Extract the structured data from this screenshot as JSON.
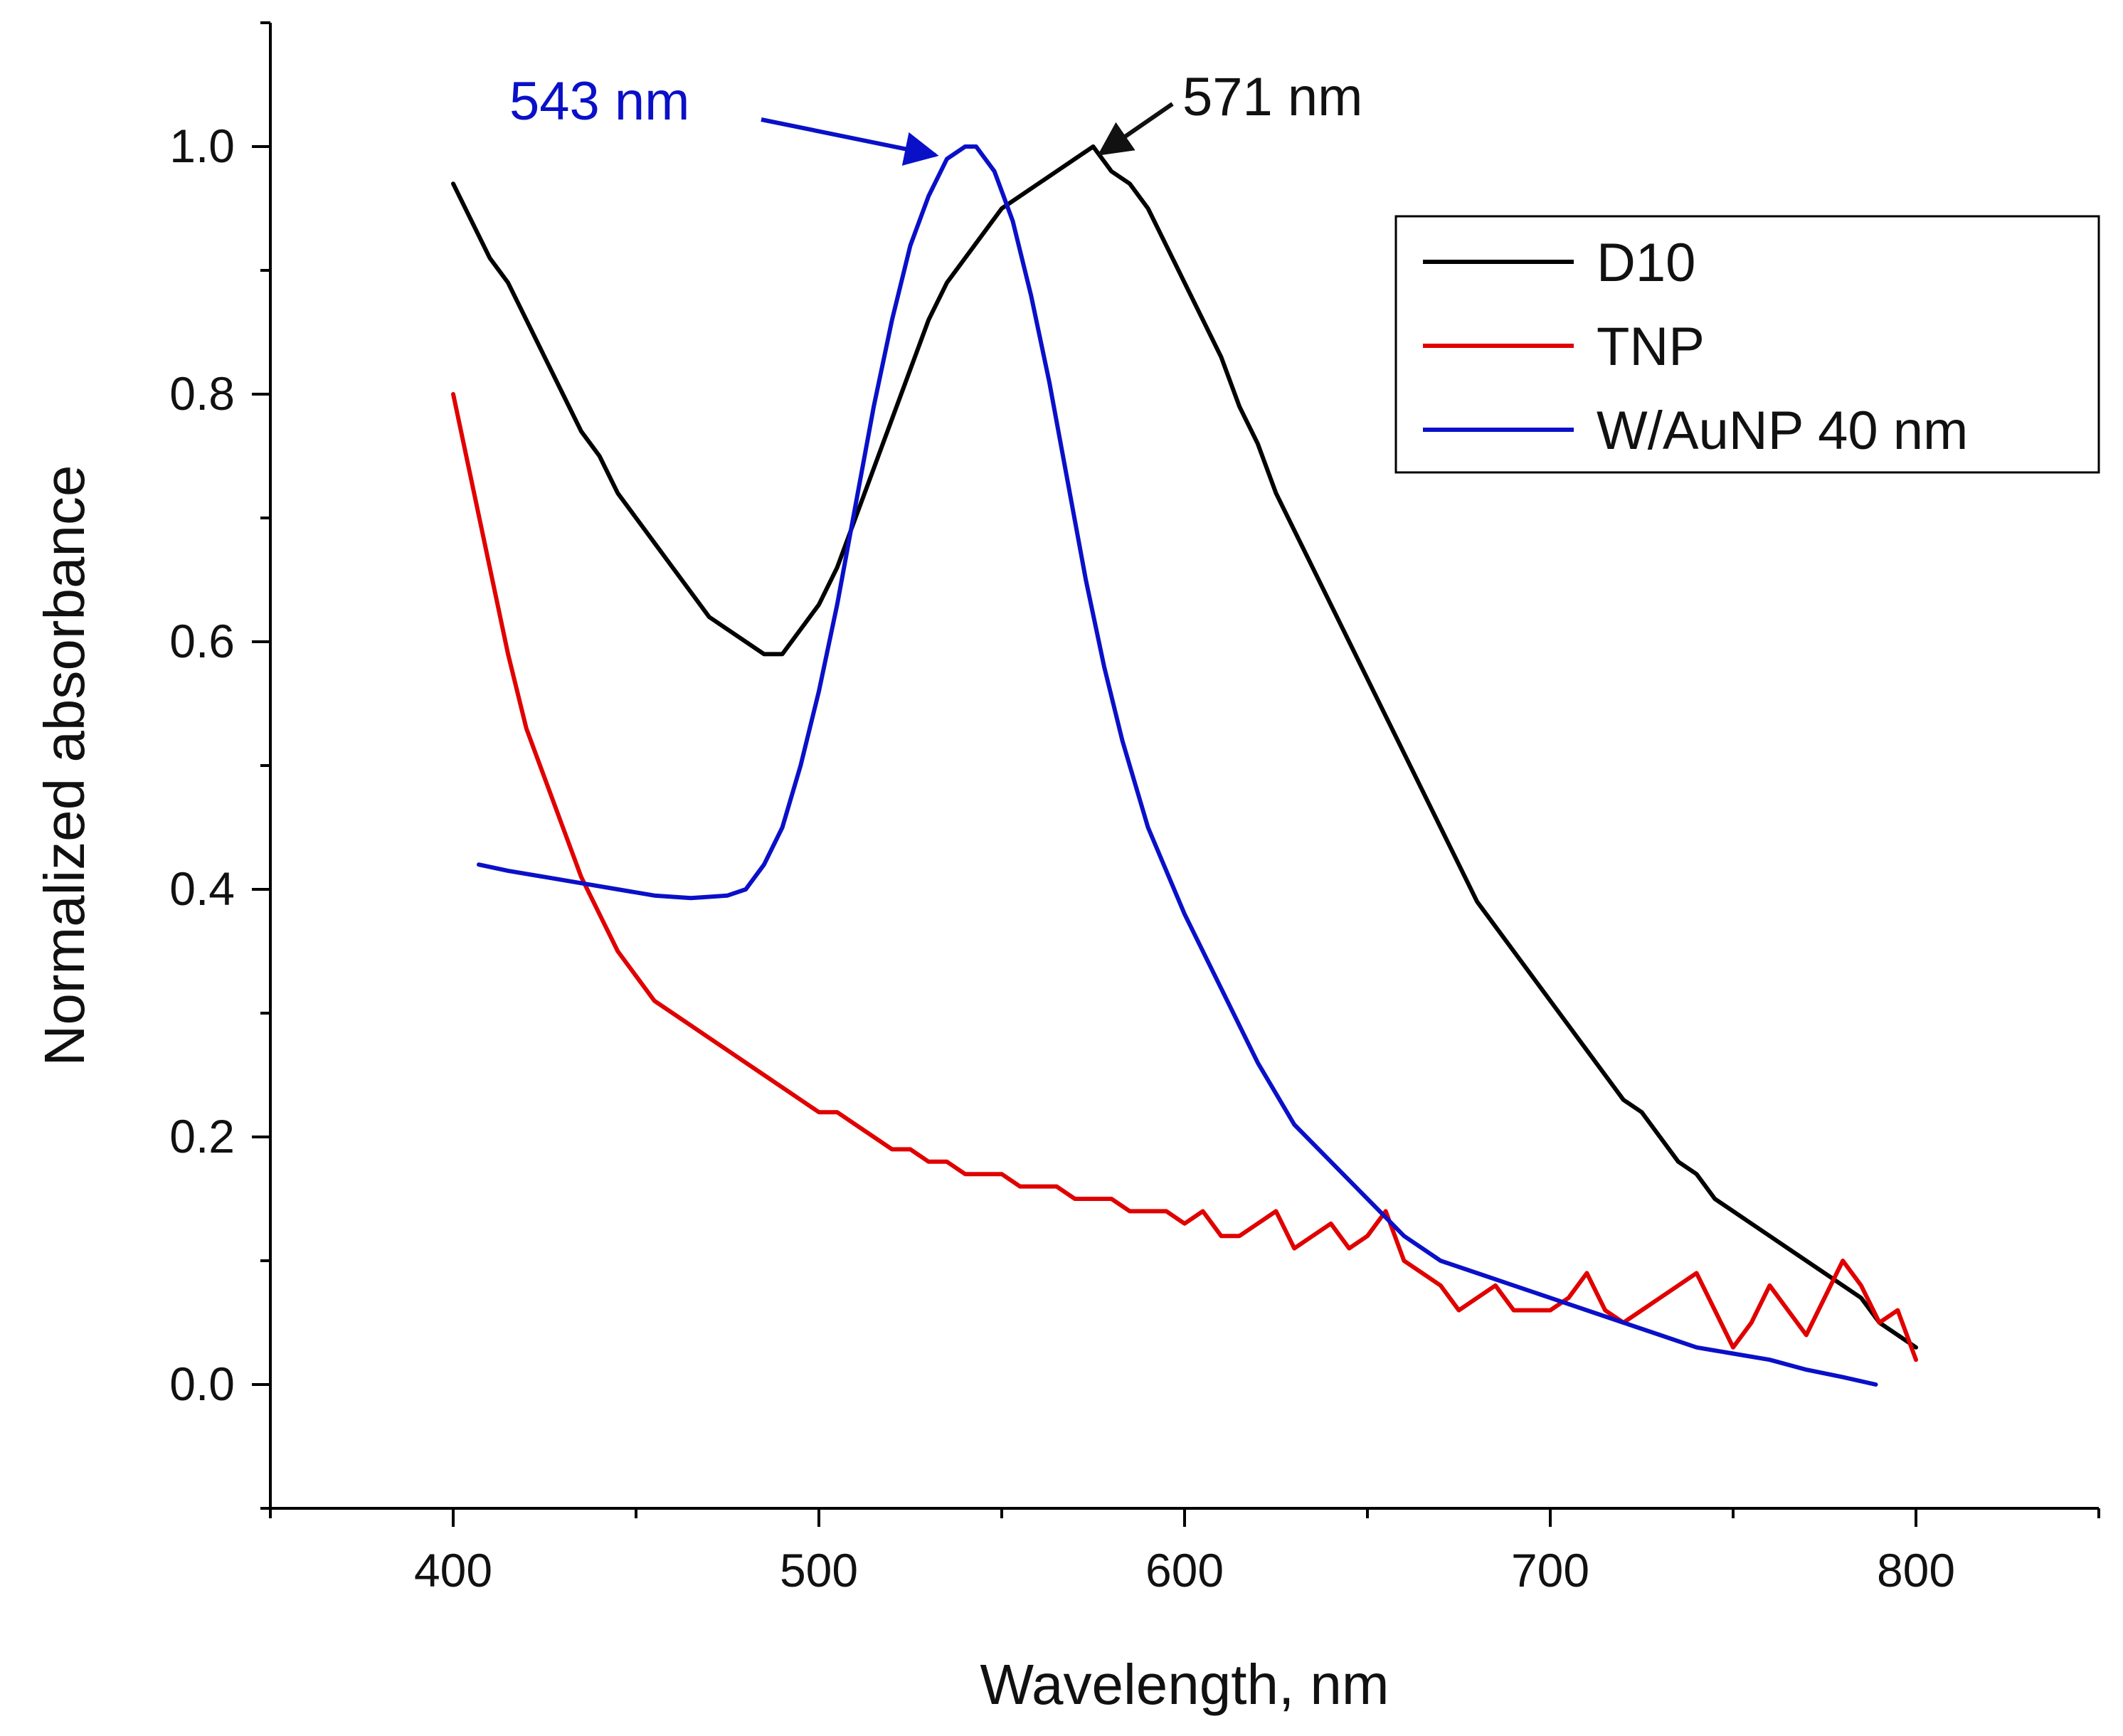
{
  "chart_data": {
    "type": "line",
    "title": "",
    "xlabel": "Wavelength, nm",
    "ylabel": "Normalized absorbance",
    "xlim": [
      350,
      850
    ],
    "ylim": [
      -0.1,
      1.1
    ],
    "grid": false,
    "x_ticks": [
      400,
      500,
      600,
      700,
      800
    ],
    "x_tick_labels": [
      "400",
      "500",
      "600",
      "700",
      "800"
    ],
    "y_ticks": [
      0.0,
      0.2,
      0.4,
      0.6,
      0.8,
      1.0
    ],
    "y_tick_labels": [
      "0.0",
      "0.2",
      "0.4",
      "0.6",
      "0.8",
      "1.0"
    ],
    "legend": {
      "placement": "top-right",
      "entries": [
        "D10",
        "TNP",
        "W/AuNP 40 nm"
      ]
    },
    "series": [
      {
        "name": "D10",
        "color": "#000000",
        "x": [
          400,
          405,
          410,
          415,
          420,
          425,
          430,
          435,
          440,
          445,
          450,
          455,
          460,
          465,
          470,
          475,
          480,
          485,
          490,
          495,
          500,
          505,
          510,
          515,
          520,
          525,
          530,
          535,
          540,
          545,
          550,
          555,
          560,
          565,
          570,
          575,
          580,
          585,
          590,
          595,
          600,
          605,
          610,
          615,
          620,
          625,
          630,
          635,
          640,
          645,
          650,
          655,
          660,
          665,
          670,
          675,
          680,
          685,
          690,
          695,
          700,
          705,
          710,
          715,
          720,
          725,
          730,
          735,
          740,
          745,
          750,
          755,
          760,
          765,
          770,
          775,
          780,
          785,
          790,
          795,
          800
        ],
        "y": [
          0.97,
          0.94,
          0.91,
          0.89,
          0.86,
          0.83,
          0.8,
          0.77,
          0.75,
          0.72,
          0.7,
          0.68,
          0.66,
          0.64,
          0.62,
          0.61,
          0.6,
          0.59,
          0.59,
          0.61,
          0.63,
          0.66,
          0.7,
          0.74,
          0.78,
          0.82,
          0.86,
          0.89,
          0.91,
          0.93,
          0.95,
          0.96,
          0.97,
          0.98,
          0.99,
          1.0,
          0.98,
          0.97,
          0.95,
          0.92,
          0.89,
          0.86,
          0.83,
          0.79,
          0.76,
          0.72,
          0.69,
          0.66,
          0.63,
          0.6,
          0.57,
          0.54,
          0.51,
          0.48,
          0.45,
          0.42,
          0.39,
          0.37,
          0.35,
          0.33,
          0.31,
          0.29,
          0.27,
          0.25,
          0.23,
          0.22,
          0.2,
          0.18,
          0.17,
          0.15,
          0.14,
          0.13,
          0.12,
          0.11,
          0.1,
          0.09,
          0.08,
          0.07,
          0.05,
          0.04,
          0.03
        ]
      },
      {
        "name": "TNP",
        "color": "#e00000",
        "x": [
          400,
          405,
          410,
          415,
          420,
          425,
          430,
          435,
          440,
          445,
          450,
          455,
          460,
          465,
          470,
          475,
          480,
          485,
          490,
          495,
          500,
          505,
          510,
          515,
          520,
          525,
          530,
          535,
          540,
          545,
          550,
          555,
          560,
          565,
          570,
          575,
          580,
          585,
          590,
          595,
          600,
          605,
          610,
          615,
          620,
          625,
          630,
          635,
          640,
          645,
          650,
          655,
          660,
          665,
          670,
          675,
          680,
          685,
          690,
          695,
          700,
          705,
          710,
          715,
          720,
          725,
          730,
          735,
          740,
          745,
          750,
          755,
          760,
          765,
          770,
          775,
          780,
          785,
          790,
          795,
          800
        ],
        "y": [
          0.8,
          0.73,
          0.66,
          0.59,
          0.53,
          0.49,
          0.45,
          0.41,
          0.38,
          0.35,
          0.33,
          0.31,
          0.3,
          0.29,
          0.28,
          0.27,
          0.26,
          0.25,
          0.24,
          0.23,
          0.22,
          0.22,
          0.21,
          0.2,
          0.19,
          0.19,
          0.18,
          0.18,
          0.17,
          0.17,
          0.17,
          0.16,
          0.16,
          0.16,
          0.15,
          0.15,
          0.15,
          0.14,
          0.14,
          0.14,
          0.13,
          0.14,
          0.12,
          0.12,
          0.13,
          0.14,
          0.11,
          0.12,
          0.13,
          0.11,
          0.12,
          0.14,
          0.1,
          0.09,
          0.08,
          0.06,
          0.07,
          0.08,
          0.06,
          0.06,
          0.06,
          0.07,
          0.09,
          0.06,
          0.05,
          0.06,
          0.07,
          0.08,
          0.09,
          0.06,
          0.03,
          0.05,
          0.08,
          0.06,
          0.04,
          0.07,
          0.1,
          0.08,
          0.05,
          0.06,
          0.02
        ]
      },
      {
        "name": "W/AuNP 40 nm",
        "color": "#0a10c8",
        "x": [
          407,
          415,
          425,
          435,
          445,
          455,
          465,
          475,
          480,
          485,
          490,
          495,
          500,
          505,
          510,
          515,
          520,
          525,
          530,
          535,
          540,
          543,
          548,
          553,
          558,
          563,
          568,
          573,
          578,
          583,
          590,
          600,
          610,
          620,
          630,
          640,
          650,
          660,
          670,
          680,
          690,
          700,
          710,
          720,
          730,
          740,
          750,
          760,
          770,
          780,
          789
        ],
        "y": [
          0.42,
          0.415,
          0.41,
          0.405,
          0.4,
          0.395,
          0.393,
          0.395,
          0.4,
          0.42,
          0.45,
          0.5,
          0.56,
          0.63,
          0.71,
          0.79,
          0.86,
          0.92,
          0.96,
          0.99,
          1.0,
          1.0,
          0.98,
          0.94,
          0.88,
          0.81,
          0.73,
          0.65,
          0.58,
          0.52,
          0.45,
          0.38,
          0.32,
          0.26,
          0.21,
          0.18,
          0.15,
          0.12,
          0.1,
          0.09,
          0.08,
          0.07,
          0.06,
          0.05,
          0.04,
          0.03,
          0.025,
          0.02,
          0.012,
          0.006,
          0.0
        ]
      }
    ],
    "annotations": [
      {
        "text": "543 nm",
        "color": "#0a10c8",
        "points_to": {
          "x": 528,
          "y": 1.0
        }
      },
      {
        "text": "571 nm",
        "color": "#111111",
        "points_to": {
          "x": 575,
          "y": 1.0
        }
      }
    ]
  }
}
